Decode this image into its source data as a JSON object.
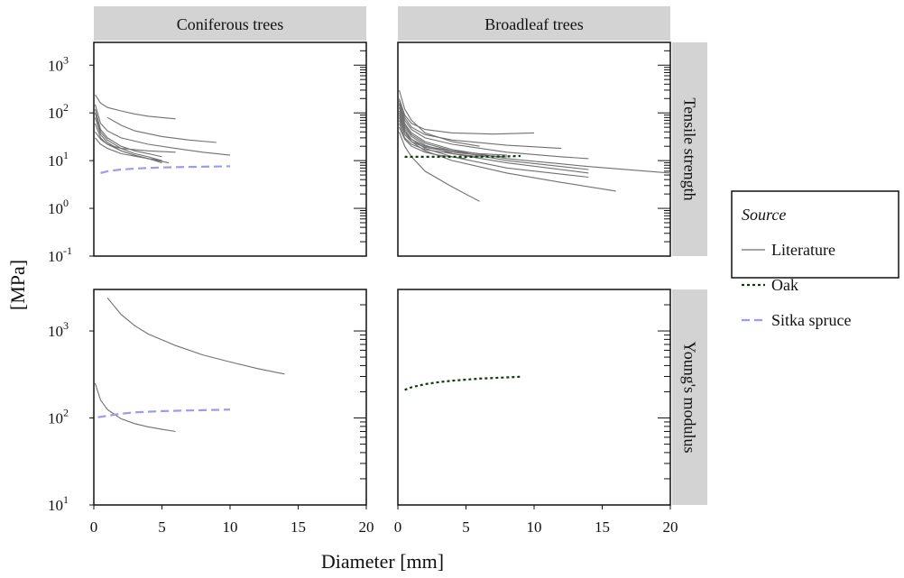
{
  "chart_data": {
    "type": "line",
    "xlabel": "Diameter [mm]",
    "ylabel": "[MPa]",
    "columns": [
      "Coniferous trees",
      "Broadleaf trees"
    ],
    "rows": [
      "Tensile strength",
      "Young's modulus"
    ],
    "x_ticks": [
      0,
      5,
      10,
      15,
      20
    ],
    "xlim": [
      0,
      20
    ],
    "y_scale": "log",
    "rows_axes": [
      {
        "ylim": [
          0.1,
          3000
        ],
        "y_ticks": [
          {
            "base": "10",
            "exp": "-1",
            "value": 0.1
          },
          {
            "base": "10",
            "exp": "0",
            "value": 1
          },
          {
            "base": "10",
            "exp": "1",
            "value": 10
          },
          {
            "base": "10",
            "exp": "2",
            "value": 100
          },
          {
            "base": "10",
            "exp": "3",
            "value": 1000
          }
        ]
      },
      {
        "ylim": [
          10,
          3000
        ],
        "y_ticks": [
          {
            "base": "10",
            "exp": "1",
            "value": 10
          },
          {
            "base": "10",
            "exp": "2",
            "value": 100
          },
          {
            "base": "10",
            "exp": "3",
            "value": 1000
          }
        ]
      }
    ],
    "legend": {
      "title": "Source",
      "position": "right",
      "entries": [
        {
          "label": "Literature",
          "color": "#707070",
          "dash": "solid"
        },
        {
          "label": "Oak",
          "color": "#0b3d0b",
          "dash": "dotted"
        },
        {
          "label": "Sitka spruce",
          "color": "#9b9bf0",
          "dash": "dashed"
        }
      ]
    },
    "panels": [
      {
        "column": 0,
        "row": 0,
        "series": [
          {
            "source": "Literature",
            "x": [
              0.1,
              0.5,
              1,
              2,
              3,
              4,
              6
            ],
            "y": [
              240,
              160,
              130,
              110,
              95,
              85,
              75
            ]
          },
          {
            "source": "Literature",
            "x": [
              1,
              2,
              3,
              5,
              7,
              9
            ],
            "y": [
              80,
              55,
              42,
              32,
              27,
              24
            ]
          },
          {
            "source": "Literature",
            "x": [
              0.1,
              0.5,
              1,
              2,
              4,
              6,
              8,
              10
            ],
            "y": [
              150,
              60,
              42,
              30,
              22,
              18,
              15,
              13
            ]
          },
          {
            "source": "Literature",
            "x": [
              0.1,
              0.5,
              1,
              2,
              3,
              4,
              5
            ],
            "y": [
              120,
              45,
              30,
              20,
              16,
              14,
              12
            ]
          },
          {
            "source": "Literature",
            "x": [
              0.1,
              0.5,
              1,
              2,
              3,
              4,
              5
            ],
            "y": [
              100,
              40,
              27,
              18,
              14,
              12,
              10
            ]
          },
          {
            "source": "Literature",
            "x": [
              0.1,
              0.5,
              1,
              2,
              3,
              4,
              5
            ],
            "y": [
              80,
              35,
              24,
              16,
              13,
              11,
              9
            ]
          },
          {
            "source": "Literature",
            "x": [
              0.1,
              0.5,
              1,
              2,
              3,
              4,
              5
            ],
            "y": [
              60,
              30,
              22,
              16,
              13,
              11,
              10
            ]
          },
          {
            "source": "Literature",
            "x": [
              0.1,
              0.5,
              1,
              2,
              4,
              6
            ],
            "y": [
              40,
              28,
              22,
              18,
              16,
              15
            ]
          },
          {
            "source": "Literature",
            "x": [
              0.1,
              0.5,
              1,
              2,
              4,
              5.5
            ],
            "y": [
              30,
              22,
              18,
              14,
              11,
              9
            ]
          },
          {
            "source": "Sitka spruce",
            "x": [
              0.5,
              1,
              2,
              3,
              4,
              5,
              7,
              10
            ],
            "y": [
              5.5,
              6.0,
              6.5,
              6.8,
              7.0,
              7.2,
              7.4,
              7.6
            ]
          }
        ]
      },
      {
        "column": 1,
        "row": 0,
        "series": [
          {
            "source": "Literature",
            "x": [
              0.1,
              0.5,
              1,
              2,
              4,
              6
            ],
            "y": [
              300,
              120,
              70,
              38,
              25,
              20
            ]
          },
          {
            "source": "Literature",
            "x": [
              0.1,
              0.5,
              1,
              2,
              4,
              7,
              10
            ],
            "y": [
              200,
              90,
              60,
              45,
              38,
              36,
              38
            ]
          },
          {
            "source": "Literature",
            "x": [
              0.1,
              0.5,
              1,
              2,
              4,
              8,
              12
            ],
            "y": [
              180,
              80,
              50,
              35,
              27,
              21,
              18
            ]
          },
          {
            "source": "Literature",
            "x": [
              0.1,
              0.5,
              1,
              2,
              4,
              8,
              12,
              14
            ],
            "y": [
              160,
              70,
              45,
              30,
              22,
              15,
              12,
              11
            ]
          },
          {
            "source": "Literature",
            "x": [
              0.1,
              0.5,
              1,
              2,
              4,
              8,
              14,
              20
            ],
            "y": [
              150,
              60,
              38,
              25,
              17,
              11,
              7.5,
              5.5
            ]
          },
          {
            "source": "Literature",
            "x": [
              0.1,
              0.5,
              1,
              2,
              4,
              8,
              14
            ],
            "y": [
              130,
              55,
              35,
              23,
              16,
              10,
              6.5
            ]
          },
          {
            "source": "Literature",
            "x": [
              0.1,
              0.5,
              1,
              2,
              4,
              8,
              14
            ],
            "y": [
              110,
              50,
              32,
              21,
              14,
              9,
              5.5
            ]
          },
          {
            "source": "Literature",
            "x": [
              0.1,
              0.5,
              1,
              2,
              4,
              8,
              14
            ],
            "y": [
              100,
              45,
              28,
              18,
              12,
              7,
              4.5
            ]
          },
          {
            "source": "Literature",
            "x": [
              0.1,
              0.5,
              1,
              2,
              4,
              8,
              12,
              16
            ],
            "y": [
              90,
              40,
              25,
              16,
              10,
              5.5,
              3.5,
              2.3
            ]
          },
          {
            "source": "Literature",
            "x": [
              0.1,
              0.5,
              1,
              2,
              4,
              6,
              8
            ],
            "y": [
              80,
              40,
              28,
              20,
              16,
              14,
              13
            ]
          },
          {
            "source": "Literature",
            "x": [
              0.1,
              0.5,
              1,
              2,
              4,
              6,
              8
            ],
            "y": [
              70,
              35,
              25,
              19,
              15,
              13,
              12
            ]
          },
          {
            "source": "Literature",
            "x": [
              0.1,
              0.5,
              1,
              2,
              4,
              6
            ],
            "y": [
              60,
              30,
              22,
              17,
              14,
              12
            ]
          },
          {
            "source": "Literature",
            "x": [
              0.1,
              0.5,
              1,
              2,
              3,
              4,
              5
            ],
            "y": [
              50,
              28,
              20,
              15,
              13,
              12,
              11
            ]
          },
          {
            "source": "Literature",
            "x": [
              0.1,
              0.5,
              1,
              2,
              4,
              6
            ],
            "y": [
              40,
              20,
              12,
              6,
              2.8,
              1.4
            ]
          },
          {
            "source": "Oak",
            "x": [
              0.5,
              2,
              4,
              6,
              8,
              9
            ],
            "y": [
              12,
              12,
              12,
              12,
              12.3,
              12.5
            ]
          }
        ]
      },
      {
        "column": 0,
        "row": 1,
        "series": [
          {
            "source": "Literature",
            "x": [
              1,
              2,
              3,
              4,
              6,
              8,
              10,
              12,
              14
            ],
            "y": [
              2400,
              1550,
              1150,
              920,
              680,
              530,
              440,
              370,
              320
            ]
          },
          {
            "source": "Literature",
            "x": [
              0.1,
              0.5,
              1,
              2,
              3,
              4,
              5,
              6
            ],
            "y": [
              250,
              160,
              125,
              98,
              86,
              79,
              74,
              70
            ]
          },
          {
            "source": "Sitka spruce",
            "x": [
              0.3,
              1,
              2,
              3,
              4,
              5,
              7,
              10
            ],
            "y": [
              102,
              106,
              112,
              116,
              118,
              120,
              122,
              125
            ]
          }
        ]
      },
      {
        "column": 1,
        "row": 1,
        "series": [
          {
            "source": "Oak",
            "x": [
              0.5,
              1,
              2,
              3,
              4,
              5,
              6,
              7,
              8,
              9
            ],
            "y": [
              210,
              225,
              245,
              258,
              268,
              276,
              283,
              288,
              293,
              298
            ]
          }
        ]
      }
    ]
  }
}
